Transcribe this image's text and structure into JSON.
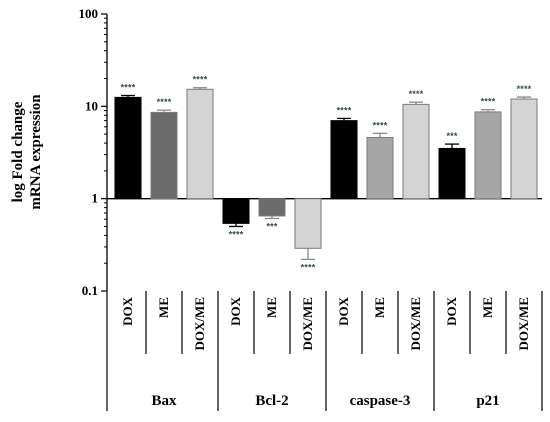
{
  "chart_data": {
    "type": "bar",
    "ylabel": [
      "log Fold change",
      "mRNA expression"
    ],
    "yscale": "log",
    "ylim": [
      0.1,
      100
    ],
    "yticks": [
      "0.1",
      "1",
      "10",
      "100"
    ],
    "baseline": 1,
    "groups": [
      {
        "name": "Bax",
        "bars": [
          {
            "label": "DOX",
            "value": 12.5,
            "error": 0.6,
            "sig": "****",
            "color": "#000000"
          },
          {
            "label": "ME",
            "value": 8.6,
            "error": 0.5,
            "sig": "****",
            "color": "#6b6b6b"
          },
          {
            "label": "DOX/ME",
            "value": 15.3,
            "error": 0.6,
            "sig": "****",
            "color": "#d4d4d4"
          }
        ]
      },
      {
        "name": "Bcl-2",
        "bars": [
          {
            "label": "DOX",
            "value": 0.54,
            "error": 0.04,
            "sig": "****",
            "color": "#000000"
          },
          {
            "label": "ME",
            "value": 0.65,
            "error": 0.04,
            "sig": "***",
            "color": "#6b6b6b"
          },
          {
            "label": "DOX/ME",
            "value": 0.29,
            "error": 0.07,
            "sig": "****",
            "color": "#d4d4d4"
          }
        ]
      },
      {
        "name": "caspase-3",
        "bars": [
          {
            "label": "DOX",
            "value": 7.0,
            "error": 0.4,
            "sig": "****",
            "color": "#000000"
          },
          {
            "label": "ME",
            "value": 4.6,
            "error": 0.5,
            "sig": "****",
            "color": "#a6a6a6"
          },
          {
            "label": "DOX/ME",
            "value": 10.5,
            "error": 0.6,
            "sig": "****",
            "color": "#d4d4d4"
          }
        ]
      },
      {
        "name": "p21",
        "bars": [
          {
            "label": "DOX",
            "value": 3.5,
            "error": 0.4,
            "sig": "***",
            "color": "#000000"
          },
          {
            "label": "ME",
            "value": 8.7,
            "error": 0.5,
            "sig": "****",
            "color": "#a6a6a6"
          },
          {
            "label": "DOX/ME",
            "value": 12.0,
            "error": 0.6,
            "sig": "****",
            "color": "#d4d4d4"
          }
        ]
      }
    ]
  }
}
